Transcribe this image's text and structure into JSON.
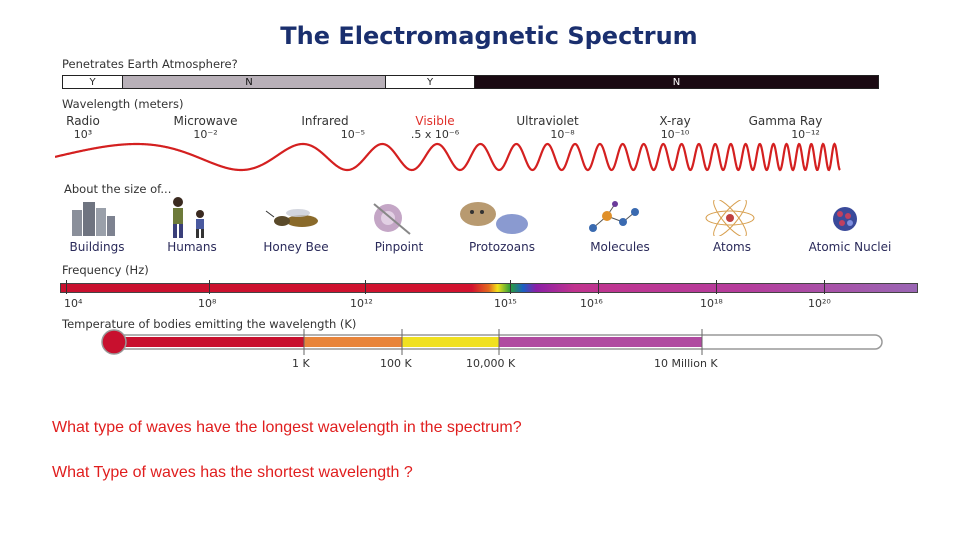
{
  "title": "The Electromagnetic Spectrum",
  "atmosphere": {
    "label": "Penetrates Earth Atmosphere?",
    "segments": [
      "Y",
      "N",
      "Y",
      "N"
    ]
  },
  "wavelength": {
    "label": "Wavelength (meters)",
    "bands": [
      {
        "name": "Radio",
        "value": "10³"
      },
      {
        "name": "Microwave",
        "value": "10⁻²"
      },
      {
        "name": "Infrared",
        "value": "10⁻⁵"
      },
      {
        "name": "Visible",
        "value": ".5 x 10⁻⁶"
      },
      {
        "name": "Ultraviolet",
        "value": "10⁻⁸"
      },
      {
        "name": "X-ray",
        "value": "10⁻¹⁰"
      },
      {
        "name": "Gamma Ray",
        "value": "10⁻¹²"
      }
    ]
  },
  "size": {
    "label": "About the size of...",
    "items": [
      "Buildings",
      "Humans",
      "Honey Bee",
      "Pinpoint",
      "Protozoans",
      "Molecules",
      "Atoms",
      "Atomic Nuclei"
    ]
  },
  "frequency": {
    "label": "Frequency (Hz)",
    "ticks": [
      "10⁴",
      "10⁸",
      "10¹²",
      "10¹⁵",
      "10¹⁶",
      "10¹⁸",
      "10²⁰"
    ]
  },
  "temperature": {
    "label": "Temperature of bodies emitting the wavelength (K)",
    "ticks": [
      "1 K",
      "100 K",
      "10,000 K",
      "10 Million K"
    ]
  },
  "questions": [
    "What type of waves have the longest wavelength in the spectrum?",
    "What Type of waves has the shortest wavelength ?"
  ],
  "colors": {
    "title": "#1a2f6e",
    "wave": "#d42020",
    "question": "#e01e1e",
    "visible_label": "#e0302a"
  }
}
